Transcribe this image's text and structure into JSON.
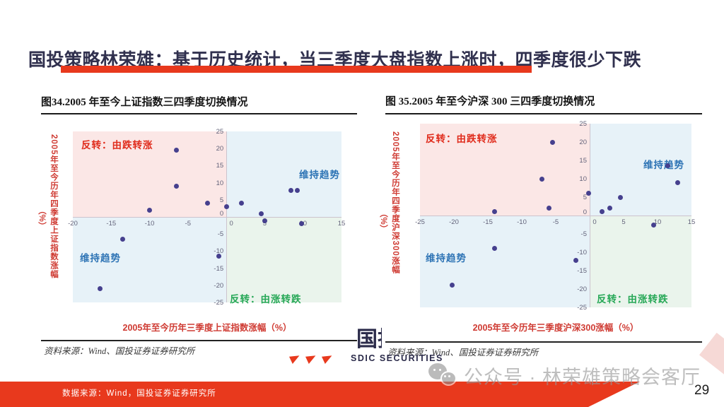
{
  "header": {
    "title": "国投策略林荣雄：基于历史统计，当三季度大盘指数上涨时，四季度很少下跌"
  },
  "footer": {
    "data_source": "数据来源：Wind，国投证券证券研究所",
    "page_number": "29"
  },
  "watermark": {
    "icon": "wechat-icon",
    "text": "公众号 · 林荣雄策略会客厅"
  },
  "logo": {
    "cn": "国投",
    "en": "SDIC SECURITIES"
  },
  "colors": {
    "accent_red": "#e8391d",
    "title_navy": "#30304e",
    "quad_pink": "#fbe7e6",
    "quad_blue": "#e7f2f8",
    "quad_green": "#eaf4ec",
    "label_red": "#e02c1c",
    "label_blue": "#2e74b5",
    "label_green": "#27a857",
    "axis_label_red": "#cf3a32",
    "point": "#46408e",
    "tick_gray": "#63637a"
  },
  "chart_data": [
    {
      "type": "scatter",
      "title": "图34.2005 年至今上证指数三四季度切换情况",
      "x_label": "2005年至今历年三季度上证指数涨幅（%）",
      "y_label": "2005年至今历年四季度上证指数涨幅",
      "y_label_unit": "（%）",
      "x_range": [
        -20,
        15
      ],
      "y_range": [
        -25,
        25
      ],
      "x_ticks": [
        -20,
        -15,
        -10,
        -5,
        0,
        5,
        10,
        15
      ],
      "y_ticks": [
        25,
        20,
        15,
        10,
        5,
        0,
        -5,
        -10,
        -15,
        -20,
        -25
      ],
      "grid": false,
      "legend": "none",
      "quadrants": {
        "top_left": {
          "label": "反转：由跌转涨"
        },
        "top_right": {
          "label": "维持趋势"
        },
        "bottom_left": {
          "label": "维持趋势"
        },
        "bottom_right": {
          "label": "反转：由涨转跌"
        }
      },
      "points": [
        [
          -6.5,
          19.5
        ],
        [
          -6.5,
          9
        ],
        [
          -2.5,
          4
        ],
        [
          0,
          3
        ],
        [
          -10,
          2
        ],
        [
          2,
          4
        ],
        [
          4.5,
          1
        ],
        [
          5,
          -1.2
        ],
        [
          8.4,
          7.8
        ],
        [
          9.2,
          7.7
        ],
        [
          9.8,
          -2
        ],
        [
          -13.5,
          -6.5
        ],
        [
          -1,
          -11.5
        ],
        [
          -16.5,
          -21
        ]
      ],
      "source": "资料来源：Wind、国投证券证券研究所"
    },
    {
      "type": "scatter",
      "title": "图 35.2005 年至今沪深 300 三四季度切换情况",
      "x_label": "2005年至今历年三季度沪深300涨幅（%）",
      "y_label": "2005年至今历年四季度沪深300涨幅",
      "y_label_unit": "（%）",
      "x_range": [
        -25,
        15
      ],
      "y_range": [
        -25,
        25
      ],
      "x_ticks": [
        -25,
        -20,
        -15,
        -10,
        -5,
        0,
        5,
        10,
        15
      ],
      "y_ticks": [
        25,
        20,
        15,
        10,
        5,
        0,
        -5,
        -10,
        -15,
        -20,
        -25
      ],
      "grid": false,
      "legend": "none",
      "quadrants": {
        "top_left": {
          "label": "反转：由跌转涨"
        },
        "top_right": {
          "label": "维持趋势"
        },
        "bottom_left": {
          "label": "维持趋势"
        },
        "bottom_right": {
          "label": "反转：由涨转跌"
        }
      },
      "points": [
        [
          -5.5,
          20
        ],
        [
          -7,
          10
        ],
        [
          -6,
          2
        ],
        [
          -14,
          1
        ],
        [
          -0.2,
          6
        ],
        [
          1.8,
          1
        ],
        [
          3,
          2
        ],
        [
          4.5,
          5
        ],
        [
          11.5,
          13.5
        ],
        [
          13,
          9
        ],
        [
          9.4,
          -2.5
        ],
        [
          -14,
          -9
        ],
        [
          -2,
          -12.2
        ],
        [
          -20.3,
          -19
        ]
      ],
      "source": "资料来源：Wind、国投证券证券研究所"
    }
  ]
}
